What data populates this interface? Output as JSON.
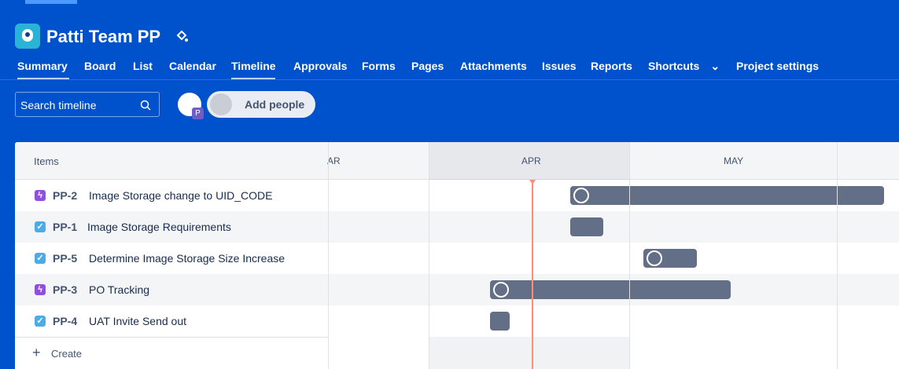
{
  "header": {
    "title": "Patti Team PP"
  },
  "tabs": [
    "Summary",
    "Board",
    "List",
    "Calendar",
    "Timeline",
    "Approvals",
    "Forms",
    "Pages",
    "Attachments",
    "Issues",
    "Reports",
    "Shortcuts",
    "Project settings"
  ],
  "toolbar": {
    "search_placeholder": "Search timeline",
    "avatar_initial": "P",
    "add_people": "Add people"
  },
  "timeline": {
    "items_header": "Items",
    "months": [
      "AR",
      "APR",
      "MAY"
    ],
    "rows": [
      {
        "key": "PP-2",
        "title": "Image Storage change to UID_CODE"
      },
      {
        "key": "PP-1",
        "title": "Image Storage Requirements"
      },
      {
        "key": "PP-5",
        "title": "Determine Image Storage Size Increase"
      },
      {
        "key": "PP-3",
        "title": "PO Tracking"
      },
      {
        "key": "PP-4",
        "title": "UAT Invite Send out"
      }
    ],
    "create": "Create"
  }
}
